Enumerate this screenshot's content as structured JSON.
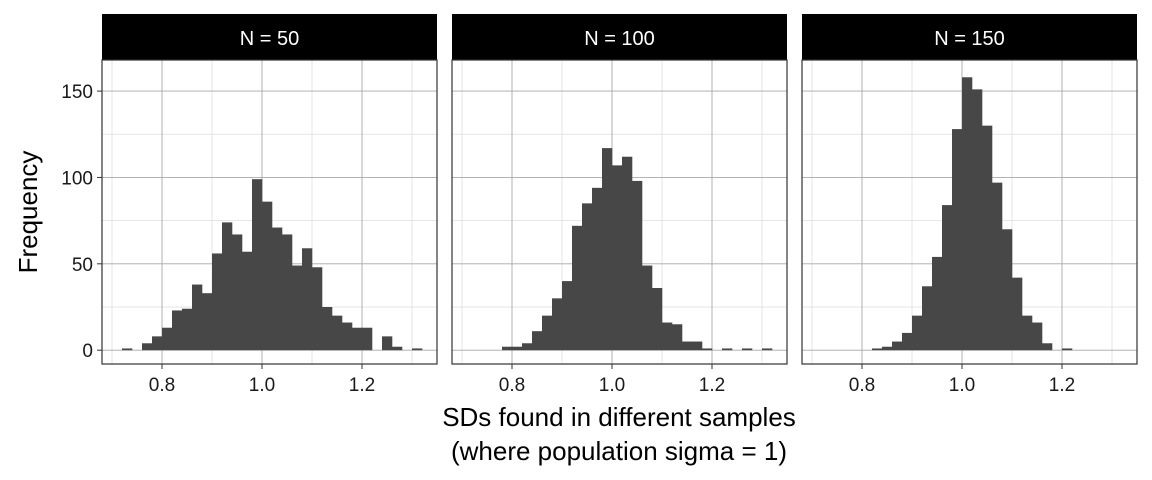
{
  "chart_data": {
    "type": "histogram-facets",
    "xlabel_line1": "SDs found in different samples",
    "xlabel_line2": "(where population sigma = 1)",
    "ylabel": "Frequency",
    "xlim": [
      0.68,
      1.35
    ],
    "ylim": [
      -8,
      168
    ],
    "x_ticks": [
      0.8,
      1.0,
      1.2
    ],
    "x_tick_labels": [
      "0.8",
      "1.0",
      "1.2"
    ],
    "y_ticks": [
      0,
      50,
      100,
      150
    ],
    "y_tick_labels": [
      "0",
      "50",
      "100",
      "150"
    ],
    "bin_width": 0.02,
    "colors": {
      "bar": "#474747",
      "strip": "#000000",
      "grid_major": "#a8a8a8",
      "grid_minor": "#dedede",
      "panel_border": "#333333"
    },
    "panels": [
      {
        "label": "N = 50",
        "bin_starts": [
          0.72,
          0.74,
          0.76,
          0.78,
          0.8,
          0.82,
          0.84,
          0.86,
          0.88,
          0.9,
          0.92,
          0.94,
          0.96,
          0.98,
          1.0,
          1.02,
          1.04,
          1.06,
          1.08,
          1.1,
          1.12,
          1.14,
          1.16,
          1.18,
          1.2,
          1.22,
          1.24,
          1.26,
          1.28,
          1.3
        ],
        "counts": [
          1,
          0,
          4,
          8,
          13,
          23,
          24,
          38,
          33,
          56,
          74,
          67,
          57,
          99,
          86,
          71,
          67,
          49,
          59,
          48,
          25,
          20,
          16,
          13,
          13,
          0,
          8,
          2,
          0,
          1
        ]
      },
      {
        "label": "N = 100",
        "bin_starts": [
          0.78,
          0.8,
          0.82,
          0.84,
          0.86,
          0.88,
          0.9,
          0.92,
          0.94,
          0.96,
          0.98,
          1.0,
          1.02,
          1.04,
          1.06,
          1.08,
          1.1,
          1.12,
          1.14,
          1.16,
          1.18,
          1.2,
          1.22,
          1.24,
          1.26,
          1.28,
          1.3
        ],
        "counts": [
          2,
          2,
          4,
          11,
          20,
          30,
          40,
          72,
          85,
          94,
          117,
          107,
          112,
          98,
          49,
          36,
          16,
          15,
          5,
          5,
          1,
          0,
          1,
          0,
          1,
          0,
          1
        ]
      },
      {
        "label": "N = 150",
        "bin_starts": [
          0.82,
          0.84,
          0.86,
          0.88,
          0.9,
          0.92,
          0.94,
          0.96,
          0.98,
          1.0,
          1.02,
          1.04,
          1.06,
          1.08,
          1.1,
          1.12,
          1.14,
          1.16,
          1.18,
          1.2
        ],
        "counts": [
          1,
          2,
          5,
          10,
          20,
          37,
          54,
          84,
          128,
          158,
          151,
          130,
          97,
          70,
          42,
          20,
          16,
          4,
          0,
          1
        ]
      }
    ]
  }
}
